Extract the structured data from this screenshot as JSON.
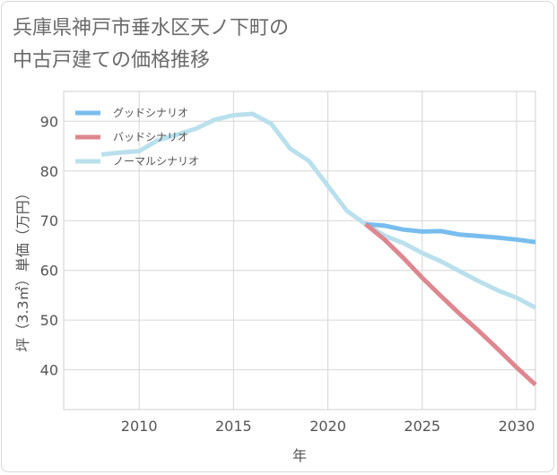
{
  "title_line1": "兵庫県神戸市垂水区天ノ下町の",
  "title_line2": "中古戸建ての価格推移",
  "chart_data": {
    "type": "line",
    "xlabel": "年",
    "ylabel": "坪（3.3㎡）単価（万円）",
    "xlim": [
      2006,
      2031
    ],
    "ylim": [
      32,
      96
    ],
    "xticks": [
      2010,
      2015,
      2020,
      2025,
      2030
    ],
    "yticks": [
      40,
      50,
      60,
      70,
      80,
      90
    ],
    "grid": true,
    "legend_position": "top-left",
    "series": [
      {
        "name": "グッドシナリオ",
        "color": "#78bdee",
        "points": [
          [
            2022,
            69.3
          ],
          [
            2023,
            69.0
          ],
          [
            2024,
            68.2
          ],
          [
            2025,
            67.8
          ],
          [
            2026,
            67.9
          ],
          [
            2027,
            67.2
          ],
          [
            2028,
            66.9
          ],
          [
            2029,
            66.6
          ],
          [
            2030,
            66.2
          ],
          [
            2031,
            65.7
          ]
        ]
      },
      {
        "name": "バッドシナリオ",
        "color": "#de8790",
        "points": [
          [
            2022,
            69.3
          ],
          [
            2023,
            66.2
          ],
          [
            2024,
            62.5
          ],
          [
            2025,
            58.5
          ],
          [
            2026,
            54.8
          ],
          [
            2027,
            51.2
          ],
          [
            2028,
            47.8
          ],
          [
            2029,
            44.2
          ],
          [
            2030,
            40.5
          ],
          [
            2031,
            37.0
          ]
        ]
      },
      {
        "name": "ノーマルシナリオ",
        "color": "#b9e0ec",
        "points": [
          [
            2008,
            83.3
          ],
          [
            2009,
            83.7
          ],
          [
            2010,
            84.0
          ],
          [
            2011,
            86.2
          ],
          [
            2012,
            87.3
          ],
          [
            2013,
            88.5
          ],
          [
            2014,
            90.3
          ],
          [
            2015,
            91.2
          ],
          [
            2016,
            91.5
          ],
          [
            2017,
            89.5
          ],
          [
            2018,
            84.5
          ],
          [
            2019,
            82.0
          ],
          [
            2020,
            77.0
          ],
          [
            2021,
            72.0
          ],
          [
            2022,
            69.3
          ],
          [
            2023,
            67.0
          ],
          [
            2024,
            65.5
          ],
          [
            2025,
            63.5
          ],
          [
            2026,
            61.8
          ],
          [
            2027,
            59.8
          ],
          [
            2028,
            57.8
          ],
          [
            2029,
            56.0
          ],
          [
            2030,
            54.5
          ],
          [
            2031,
            52.5
          ]
        ]
      }
    ]
  }
}
